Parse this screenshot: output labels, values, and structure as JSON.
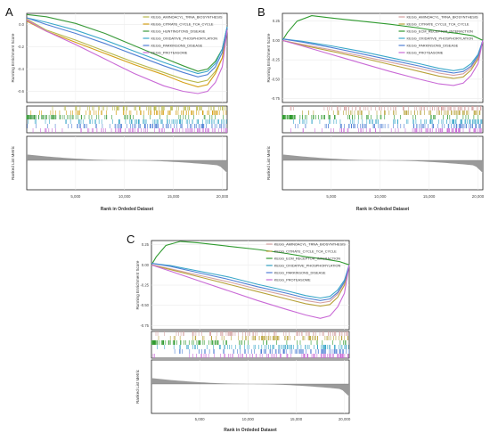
{
  "panels": [
    {
      "letter": "A"
    },
    {
      "letter": "B"
    },
    {
      "letter": "C"
    }
  ],
  "chart_data": [
    {
      "type": "line",
      "panel": "A",
      "ylabel_top": "Running Enrichment Score",
      "ylabel_bottom": "Ranked List Metric",
      "xlabel": "Rank in Ordeded Dataset",
      "xticks": [
        "5,000",
        "10,000",
        "15,000",
        "20,000"
      ],
      "x_tick_values": [
        5000,
        10000,
        15000,
        20000
      ],
      "xlim": [
        0,
        20500
      ],
      "ylim": [
        -0.7,
        0.1
      ],
      "yticks": [
        "0.0",
        "-0.2",
        "-0.4",
        "-0.6"
      ],
      "ytick_values": [
        0.0,
        -0.2,
        -0.4,
        -0.6
      ],
      "legend_position": "top-right",
      "series": [
        {
          "name": "KEGG_AMINOACYL_TRNA_BIOSYNTHESIS",
          "color": "#b7b84c",
          "x": [
            0,
            2000,
            5000,
            8000,
            11000,
            14000,
            16000,
            17500,
            18500,
            19300,
            20000,
            20500
          ],
          "y": [
            0.05,
            -0.05,
            -0.14,
            -0.24,
            -0.34,
            -0.43,
            -0.49,
            -0.52,
            -0.5,
            -0.42,
            -0.3,
            -0.05
          ]
        },
        {
          "name": "KEGG_CITRATE_CYCLE_TCA_CYCLE",
          "color": "#d4a017",
          "x": [
            0,
            2000,
            5000,
            8000,
            11000,
            14000,
            16000,
            17500,
            18500,
            19300,
            20000,
            20500
          ],
          "y": [
            0.03,
            -0.06,
            -0.16,
            -0.26,
            -0.36,
            -0.45,
            -0.52,
            -0.56,
            -0.54,
            -0.44,
            -0.3,
            -0.05
          ]
        },
        {
          "name": "KEGG_HUNTINGTONS_DISEASE",
          "color": "#3a9a3a",
          "x": [
            0,
            2000,
            5000,
            8000,
            11000,
            14000,
            16000,
            17500,
            18500,
            19300,
            20000,
            20500
          ],
          "y": [
            0.09,
            0.07,
            0.01,
            -0.08,
            -0.19,
            -0.3,
            -0.37,
            -0.42,
            -0.4,
            -0.33,
            -0.22,
            -0.02
          ]
        },
        {
          "name": "KEGG_OXIDATIVE_PHOSPHORYLATION",
          "color": "#3aa7c9",
          "x": [
            0,
            2000,
            5000,
            8000,
            11000,
            14000,
            16000,
            17500,
            18500,
            19300,
            20000,
            20500
          ],
          "y": [
            0.06,
            0.02,
            -0.05,
            -0.14,
            -0.24,
            -0.34,
            -0.4,
            -0.44,
            -0.42,
            -0.35,
            -0.22,
            -0.02
          ]
        },
        {
          "name": "KEGG_PARKINSONS_DISEASE",
          "color": "#4f7fd4",
          "x": [
            0,
            2000,
            5000,
            8000,
            11000,
            14000,
            16000,
            17500,
            18500,
            19300,
            20000,
            20500
          ],
          "y": [
            0.06,
            0.0,
            -0.08,
            -0.17,
            -0.27,
            -0.37,
            -0.43,
            -0.47,
            -0.45,
            -0.38,
            -0.25,
            -0.03
          ]
        },
        {
          "name": "KEGG_PROTEASOME",
          "color": "#c96ad6",
          "x": [
            0,
            2000,
            5000,
            8000,
            11000,
            14000,
            16000,
            17500,
            18500,
            19300,
            20000,
            20500
          ],
          "y": [
            0.04,
            -0.06,
            -0.18,
            -0.31,
            -0.44,
            -0.55,
            -0.6,
            -0.62,
            -0.6,
            -0.52,
            -0.38,
            -0.05
          ]
        }
      ]
    },
    {
      "type": "line",
      "panel": "B",
      "ylabel_top": "Running Enrichment Score",
      "ylabel_bottom": "Ranked List Metric",
      "xlabel": "Rank in Ordeded Dataset",
      "xticks": [
        "5,000",
        "10,000",
        "15,000",
        "20,000"
      ],
      "x_tick_values": [
        5000,
        10000,
        15000,
        20000
      ],
      "xlim": [
        0,
        20500
      ],
      "ylim": [
        -0.8,
        0.35
      ],
      "yticks": [
        "0.25",
        "0.00",
        "-0.25",
        "-0.50",
        "-0.75"
      ],
      "ytick_values": [
        0.25,
        0.0,
        -0.25,
        -0.5,
        -0.75
      ],
      "legend_position": "top-right",
      "series": [
        {
          "name": "KEGG_AMINOACYL_TRNA_BIOSYNTHESIS",
          "color": "#d4a0a0",
          "x": [
            0,
            2000,
            5000,
            8000,
            11000,
            14000,
            16000,
            17500,
            18500,
            19300,
            20000,
            20500
          ],
          "y": [
            0.0,
            -0.05,
            -0.12,
            -0.2,
            -0.28,
            -0.36,
            -0.42,
            -0.45,
            -0.43,
            -0.35,
            -0.22,
            0.0
          ]
        },
        {
          "name": "KEGG_CITRATE_CYCLE_TCA_CYCLE",
          "color": "#b8a23a",
          "x": [
            0,
            2000,
            5000,
            8000,
            11000,
            14000,
            16000,
            17500,
            18500,
            19300,
            20000,
            20500
          ],
          "y": [
            0.0,
            -0.06,
            -0.14,
            -0.22,
            -0.31,
            -0.4,
            -0.46,
            -0.49,
            -0.47,
            -0.38,
            -0.24,
            0.0
          ]
        },
        {
          "name": "KEGG_ECM_RECEPTOR_INTERACTION",
          "color": "#2f9a2f",
          "x": [
            0,
            500,
            1500,
            3000,
            5000,
            8000,
            11000,
            14000,
            16000,
            18000,
            19500,
            20500
          ],
          "y": [
            0.0,
            0.1,
            0.25,
            0.32,
            0.29,
            0.25,
            0.21,
            0.16,
            0.12,
            0.09,
            0.06,
            0.0
          ]
        },
        {
          "name": "KEGG_OXIDATIVE_PHOSPHORYLATION",
          "color": "#3aa7c9",
          "x": [
            0,
            2000,
            5000,
            8000,
            11000,
            14000,
            16000,
            17500,
            18500,
            19300,
            20000,
            20500
          ],
          "y": [
            0.02,
            -0.01,
            -0.07,
            -0.14,
            -0.22,
            -0.3,
            -0.36,
            -0.39,
            -0.37,
            -0.3,
            -0.18,
            0.0
          ]
        },
        {
          "name": "KEGG_PARKINSONS_DISEASE",
          "color": "#4f7fd4",
          "x": [
            0,
            2000,
            5000,
            8000,
            11000,
            14000,
            16000,
            17500,
            18500,
            19300,
            20000,
            20500
          ],
          "y": [
            0.02,
            -0.02,
            -0.09,
            -0.17,
            -0.25,
            -0.33,
            -0.39,
            -0.42,
            -0.4,
            -0.33,
            -0.2,
            0.0
          ]
        },
        {
          "name": "KEGG_PROTEASOME",
          "color": "#c96ad6",
          "x": [
            0,
            2000,
            5000,
            8000,
            11000,
            14000,
            16000,
            17500,
            18500,
            19300,
            20000,
            20500
          ],
          "y": [
            0.0,
            -0.07,
            -0.18,
            -0.29,
            -0.4,
            -0.5,
            -0.56,
            -0.58,
            -0.55,
            -0.45,
            -0.3,
            0.0
          ]
        }
      ]
    },
    {
      "type": "line",
      "panel": "C",
      "ylabel_top": "Running Enrichment Score",
      "ylabel_bottom": "Ranked List Metric",
      "xlabel": "Rank in Ordeded Dataset",
      "xticks": [
        "5,000",
        "10,000",
        "15,000",
        "20,000"
      ],
      "x_tick_values": [
        5000,
        10000,
        15000,
        20000
      ],
      "xlim": [
        0,
        20500
      ],
      "ylim": [
        -0.8,
        0.3
      ],
      "yticks": [
        "0.25",
        "0.00",
        "-0.25",
        "-0.50",
        "-0.75"
      ],
      "ytick_values": [
        0.25,
        0.0,
        -0.25,
        -0.5,
        -0.75
      ],
      "legend_position": "top-right",
      "series": [
        {
          "name": "KEGG_AMINOACYL_TRNA_BIOSYNTHESIS",
          "color": "#d4a0a0",
          "x": [
            0,
            2000,
            5000,
            8000,
            11000,
            14000,
            16000,
            17500,
            18500,
            19300,
            20000,
            20500
          ],
          "y": [
            0.0,
            -0.05,
            -0.13,
            -0.21,
            -0.3,
            -0.38,
            -0.44,
            -0.47,
            -0.45,
            -0.36,
            -0.22,
            0.0
          ]
        },
        {
          "name": "KEGG_CITRATE_CYCLE_TCA_CYCLE",
          "color": "#b8a23a",
          "x": [
            0,
            2000,
            5000,
            8000,
            11000,
            14000,
            16000,
            17500,
            18500,
            19300,
            20000,
            20500
          ],
          "y": [
            0.0,
            -0.06,
            -0.15,
            -0.24,
            -0.33,
            -0.42,
            -0.48,
            -0.51,
            -0.49,
            -0.4,
            -0.25,
            0.0
          ]
        },
        {
          "name": "KEGG_ECM_RECEPTOR_INTERACTION",
          "color": "#2f9a2f",
          "x": [
            0,
            500,
            1500,
            3000,
            5000,
            8000,
            11000,
            14000,
            16000,
            18000,
            19500,
            20500
          ],
          "y": [
            0.0,
            0.1,
            0.24,
            0.29,
            0.27,
            0.23,
            0.19,
            0.14,
            0.1,
            0.07,
            0.04,
            0.0
          ]
        },
        {
          "name": "KEGG_OXIDATIVE_PHOSPHORYLATION",
          "color": "#3aa7c9",
          "x": [
            0,
            2000,
            5000,
            8000,
            11000,
            14000,
            16000,
            17500,
            18500,
            19300,
            20000,
            20500
          ],
          "y": [
            0.02,
            -0.01,
            -0.08,
            -0.15,
            -0.24,
            -0.32,
            -0.38,
            -0.41,
            -0.39,
            -0.31,
            -0.19,
            0.0
          ]
        },
        {
          "name": "KEGG_PARKINSONS_DISEASE",
          "color": "#4f7fd4",
          "x": [
            0,
            2000,
            5000,
            8000,
            11000,
            14000,
            16000,
            17500,
            18500,
            19300,
            20000,
            20500
          ],
          "y": [
            0.02,
            -0.02,
            -0.1,
            -0.18,
            -0.27,
            -0.35,
            -0.41,
            -0.44,
            -0.42,
            -0.34,
            -0.21,
            0.0
          ]
        },
        {
          "name": "KEGG_PROTEASOME",
          "color": "#c96ad6",
          "x": [
            0,
            2000,
            5000,
            8000,
            11000,
            14000,
            16000,
            17500,
            18500,
            19300,
            20000,
            20500
          ],
          "y": [
            0.0,
            -0.08,
            -0.2,
            -0.32,
            -0.44,
            -0.55,
            -0.62,
            -0.66,
            -0.63,
            -0.52,
            -0.35,
            0.0
          ]
        }
      ]
    }
  ]
}
